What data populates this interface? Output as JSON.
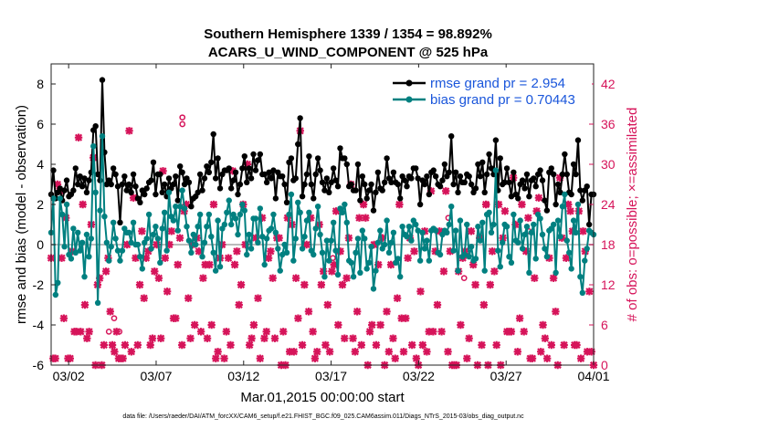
{
  "chart_data": {
    "type": "line",
    "title": "Southern Hemisphere 1339 / 1354 = 98.892%",
    "subtitle": "ACARS_U_WIND_COMPONENT @ 525 hPa",
    "xlabel": "Mar.01,2015 00:00:00 start",
    "ylabel": "rmse and bias (model - observation)",
    "y2label": "# of obs: o=possible; ×=assimilated",
    "footer": "data file: /Users/raeder/DAI/ATM_forcXX/CAM6_setup/f.e21.FHIST_BGC.f09_025.CAM6assim.011/Diags_NTrS_2015-03/obs_diag_output.nc",
    "x_ticks": [
      2,
      7,
      12,
      17,
      22,
      27,
      32
    ],
    "x_tick_labels": [
      "03/02",
      "03/07",
      "03/12",
      "03/17",
      "03/22",
      "03/27",
      "04/01"
    ],
    "xlim": [
      1,
      32
    ],
    "ylim": [
      -6,
      9
    ],
    "y_ticks": [
      -6,
      -4,
      -2,
      0,
      2,
      4,
      6,
      8
    ],
    "y2lim": [
      0,
      45
    ],
    "y2_ticks": [
      0,
      6,
      12,
      18,
      24,
      30,
      36,
      42
    ],
    "zero_line": true,
    "colors": {
      "rmse": "#000000",
      "bias": "#008080",
      "obs": "#d6145a",
      "zero": "#bbbbbb",
      "legend_text": "#1a56db"
    },
    "series": [
      {
        "name": "rmse grand pr = 2.954",
        "values": [
          2.5,
          3.7,
          2.3,
          2.6,
          2.8,
          2.2,
          2.7,
          3.2,
          2.4,
          2.5,
          2.7,
          3.8,
          3.0,
          3.4,
          2.9,
          3.3,
          2.6,
          3.2,
          3.6,
          5.7,
          5.9,
          3.5,
          3.2,
          8.2,
          4.6,
          3.0,
          3.2,
          3.0,
          3.8,
          3.5,
          2.9,
          1.1,
          3.0,
          3.4,
          2.7,
          3.0,
          2.6,
          3.5,
          2.9,
          2.3,
          2.1,
          2.7,
          2.5,
          2.8,
          3.1,
          3.2,
          4.1,
          2.5,
          3.5,
          3.5,
          2.6,
          3.0,
          2.4,
          3.3,
          2.8,
          3.0,
          3.4,
          2.2,
          3.9,
          3.6,
          3.0,
          3.3,
          3.1,
          1.9,
          2.3,
          2.4,
          2.6,
          3.5,
          2.7,
          3.3,
          3.9,
          3.6,
          4.1,
          5.5,
          3.3,
          4.3,
          2.8,
          3.5,
          3.7,
          3.7,
          3.8,
          2.8,
          3.2,
          3.6,
          2.5,
          3.0,
          3.8,
          4.4,
          3.1,
          3.8,
          3.3,
          4.5,
          3.7,
          4.2,
          4.5,
          3.5,
          3.5,
          3.1,
          3.6,
          3.3,
          3.7,
          2.3,
          3.6,
          3.4,
          3.4,
          3.0,
          2.1,
          4.1,
          4.3,
          3.2,
          3.3,
          5.0,
          6.3,
          2.4,
          3.0,
          3.5,
          4.4,
          3.0,
          2.3,
          3.5,
          4.3,
          3.7,
          3.1,
          2.7,
          3.3,
          2.6,
          3.1,
          3.8,
          3.2,
          2.9,
          4.8,
          4.3,
          4.3,
          4.0,
          2.9,
          3.0,
          2.7,
          2.7,
          4.0,
          2.2,
          3.4,
          3.0,
          2.3,
          2.7,
          3.0,
          1.7,
          2.6,
          3.6,
          2.8,
          2.7,
          3.1,
          4.3,
          3.3,
          3.1,
          3.6,
          3.1,
          3.0,
          2.3,
          3.4,
          3.2,
          2.9,
          3.4,
          3.3,
          3.8,
          3.8,
          3.3,
          2.0,
          3.2,
          3.0,
          3.4,
          2.5,
          3.6,
          3.7,
          3.4,
          3.0,
          2.9,
          3.2,
          4.0,
          3.4,
          3.6,
          5.4,
          3.0,
          3.6,
          2.6,
          3.4,
          3.1,
          3.1,
          3.5,
          3.4,
          3.0,
          2.6,
          2.8,
          4.0,
          3.4,
          4.1,
          2.6,
          3.5,
          4.5,
          3.8,
          3.5,
          5.2,
          2.7,
          4.3,
          3.0,
          3.1,
          3.8,
          3.1,
          2.4,
          3.6,
          2.5,
          2.3,
          3.0,
          3.2,
          2.8,
          3.5,
          2.4,
          3.2,
          3.3,
          2.9,
          3.5,
          3.7,
          3.2,
          2.2,
          1.7,
          3.6,
          3.8,
          3.5,
          2.0,
          3.0,
          2.6,
          3.5,
          4.5,
          3.5,
          2.6,
          2.5,
          4.0,
          3.5,
          5.2,
          2.7,
          2.2,
          2.7,
          2.9,
          1.0,
          2.5,
          2.5
        ]
      },
      {
        "name": "bias grand pr = 0.70443",
        "values": [
          0.6,
          2.3,
          -2.5,
          -1.9,
          2.3,
          1.5,
          -0.1,
          2.0,
          -0.5,
          -0.7,
          0.8,
          -0.4,
          0.6,
          -0.3,
          0.1,
          -1.6,
          0.5,
          -0.6,
          0.3,
          4.9,
          2.6,
          -2.9,
          1.7,
          5.4,
          1.4,
          0.1,
          -0.8,
          -0.1,
          1.1,
          0.3,
          -0.3,
          -0.8,
          -0.3,
          0.8,
          0.6,
          0.6,
          0.1,
          1.1,
          0.0,
          0.0,
          -0.6,
          -1.2,
          0.1,
          0.3,
          1.5,
          -0.2,
          0.5,
          0.9,
          0.3,
          -0.9,
          0.8,
          1.6,
          -0.3,
          2.6,
          1.4,
          1.2,
          1.9,
          0.7,
          1.9,
          2.7,
          1.8,
          0.9,
          0.2,
          -0.4,
          0.5,
          0.0,
          0.9,
          1.5,
          -0.6,
          0.1,
          0.9,
          1.5,
          0.4,
          -0.4,
          -1.3,
          1.2,
          -1.1,
          0.8,
          1.0,
          1.6,
          2.2,
          1.0,
          1.5,
          1.3,
          0.5,
          1.5,
          2.0,
          1.7,
          -0.5,
          0.5,
          -0.2,
          1.3,
          1.3,
          0.1,
          1.8,
          0.4,
          -1.0,
          0.3,
          0.7,
          0.8,
          1.5,
          0.6,
          -0.2,
          -1.3,
          -0.5,
          0.0,
          -0.4,
          1.5,
          2.5,
          -0.8,
          0.3,
          2.1,
          1.6,
          -0.2,
          0.4,
          1.2,
          1.6,
          -0.3,
          -0.5,
          0.8,
          1.9,
          0.5,
          -0.4,
          -1.6,
          0.2,
          -0.8,
          0.2,
          1.1,
          -0.3,
          -1.5,
          1.8,
          1.6,
          2.0,
          1.1,
          -0.8,
          -0.9,
          -1.6,
          -0.4,
          0.3,
          -1.4,
          0.7,
          0.3,
          -1.2,
          -0.9,
          -0.1,
          -2.2,
          -1.3,
          0.1,
          0.7,
          -0.2,
          0.0,
          1.2,
          -0.4,
          0.1,
          0.6,
          -0.9,
          -0.7,
          -1.6,
          0.9,
          0.5,
          0.4,
          0.9,
          0.2,
          1.2,
          1.0,
          0.7,
          -0.8,
          0.6,
          -0.2,
          0.2,
          -0.8,
          0.7,
          0.8,
          0.7,
          -0.4,
          -0.5,
          0.5,
          0.7,
          0.6,
          1.0,
          1.9,
          -0.3,
          0.7,
          -1.3,
          1.2,
          -0.6,
          -0.5,
          1.0,
          -0.6,
          -0.1,
          -0.8,
          -0.7,
          0.9,
          0.2,
          1.1,
          -1.3,
          1.5,
          1.6,
          0.6,
          1.0,
          3.7,
          -0.3,
          -1.1,
          0.1,
          1.0,
          0.9,
          -0.6,
          -0.9,
          1.5,
          0.2,
          0.1,
          1.2,
          -0.2,
          0.5,
          0.9,
          -1.4,
          0.6,
          1.0,
          -0.7,
          1.5,
          1.3,
          0.5,
          -0.2,
          -0.6,
          0.7,
          0.8,
          1.0,
          -1.4,
          1.2,
          0.4,
          1.9,
          2.5,
          0.2,
          -0.4,
          -1.2,
          1.2,
          0.6,
          2.0,
          -1.6,
          -2.4,
          -0.8,
          -0.2,
          0.7,
          0.6,
          0.5
        ]
      }
    ],
    "obs_assimilated": [
      16,
      1,
      1,
      27,
      26,
      16,
      7,
      22,
      1,
      1,
      17,
      5,
      5,
      34,
      5,
      24,
      9,
      4,
      5,
      21,
      31,
      0,
      12,
      13,
      0,
      3,
      14,
      16,
      8,
      3,
      2,
      5,
      1,
      1,
      1,
      3,
      18,
      35,
      2,
      25,
      16,
      3,
      12,
      20,
      10,
      16,
      17,
      3,
      4,
      14,
      18,
      13,
      4,
      29,
      16,
      11,
      18,
      20,
      7,
      7,
      15,
      19,
      3,
      23,
      24,
      10,
      4,
      18,
      6,
      19,
      17,
      5,
      13,
      15,
      4,
      15,
      6,
      24,
      1,
      2,
      16,
      18,
      1,
      5,
      16,
      3,
      29,
      15,
      17,
      9,
      12,
      24,
      18,
      30,
      3,
      4,
      6,
      19,
      10,
      1,
      22,
      4,
      5,
      16,
      17,
      13,
      4,
      19,
      19,
      0,
      5,
      0,
      22,
      2,
      21,
      2,
      13,
      7,
      35,
      3,
      12,
      18,
      8,
      22,
      5,
      1,
      2,
      21,
      12,
      14,
      3,
      9,
      2,
      14,
      15,
      23,
      6,
      17,
      12,
      4,
      13,
      19,
      27,
      4,
      2,
      8,
      22,
      3,
      24,
      22,
      0,
      5,
      6,
      18,
      3,
      15,
      6,
      19,
      0,
      8,
      2,
      15,
      4,
      1,
      10,
      24,
      7,
      2,
      7,
      16,
      19,
      3,
      17,
      1,
      0,
      11,
      3,
      20,
      2,
      5,
      26,
      5,
      17,
      9,
      20,
      5,
      14,
      26,
      2,
      17,
      0,
      0,
      0,
      14,
      6,
      16,
      17,
      1,
      4,
      20,
      15,
      12,
      0,
      19,
      3,
      9,
      24,
      0,
      12,
      17,
      14,
      3,
      24,
      0,
      19,
      23,
      5,
      5,
      5,
      28,
      21,
      2,
      7,
      24,
      5,
      17,
      22,
      1,
      1,
      13,
      23,
      25,
      2,
      6,
      4,
      1,
      16,
      3,
      13,
      8,
      0,
      28,
      19,
      3,
      16,
      24,
      23,
      20,
      3,
      3,
      23,
      1,
      20,
      17,
      2,
      11,
      2,
      0
    ],
    "obs_possible": [
      [
        4.3,
        5
      ],
      [
        8.5,
        37
      ],
      [
        8.5,
        36
      ],
      [
        17.1,
        16
      ],
      [
        23.7,
        22
      ],
      [
        25.9,
        24
      ],
      [
        24.6,
        13
      ],
      [
        28.3,
        20
      ],
      [
        4.6,
        7
      ],
      [
        4.9,
        5
      ]
    ]
  }
}
